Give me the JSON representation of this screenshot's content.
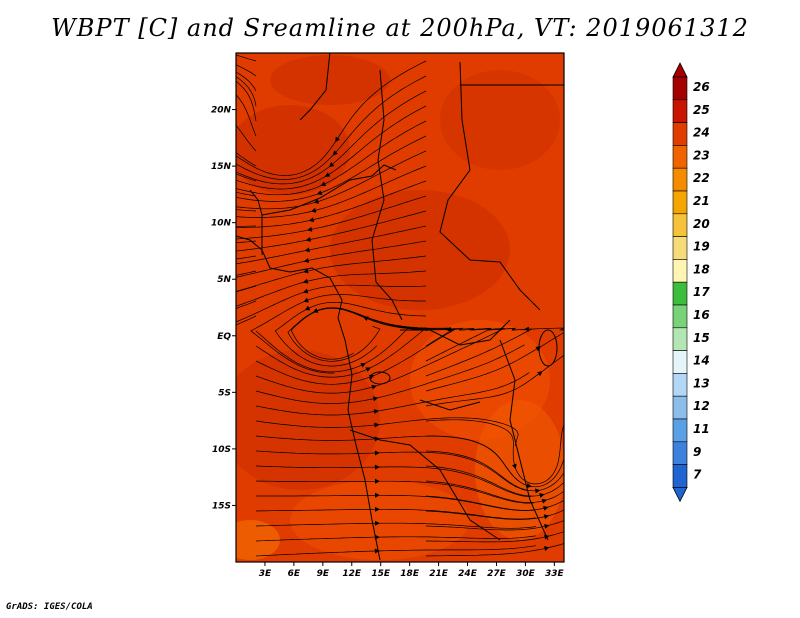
{
  "title": "WBPT [C] and Sreamline at 200hPa, VT: 2019061312",
  "footer": "GrADS: IGES/COLA",
  "map": {
    "lon_range": [
      0,
      34
    ],
    "lat_range": [
      -20,
      25
    ],
    "lon_ticks": [
      "3E",
      "6E",
      "9E",
      "12E",
      "15E",
      "18E",
      "21E",
      "24E",
      "27E",
      "30E",
      "33E"
    ],
    "lon_tick_values": [
      3,
      6,
      9,
      12,
      15,
      18,
      21,
      24,
      27,
      30,
      33
    ],
    "lat_ticks": [
      "20N",
      "15N",
      "10N",
      "5N",
      "EQ",
      "5S",
      "10S",
      "15S"
    ],
    "lat_tick_values": [
      20,
      15,
      10,
      5,
      0,
      -5,
      -10,
      -15
    ],
    "dominant_field_color": "#e03c00"
  },
  "colorbar": {
    "labels": [
      "26",
      "25",
      "24",
      "23",
      "22",
      "21",
      "20",
      "19",
      "18",
      "17",
      "16",
      "15",
      "14",
      "13",
      "12",
      "11",
      "9",
      "7"
    ],
    "colors": [
      "#a50000",
      "#c81400",
      "#e03c00",
      "#f06400",
      "#f58c00",
      "#f5a500",
      "#f5c23a",
      "#f5dc78",
      "#fff5b4",
      "#3cbe3c",
      "#78d278",
      "#b4e6b4",
      "#e6f5fa",
      "#b4d7f5",
      "#8cbeeb",
      "#5aa0e6",
      "#3c82dc",
      "#1e64d2"
    ]
  }
}
